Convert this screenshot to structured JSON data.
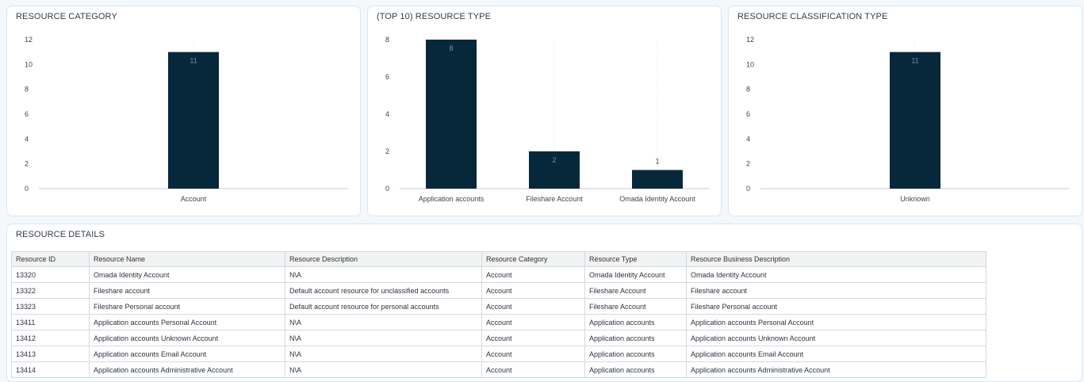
{
  "charts": {
    "category": {
      "title": "RESOURCE CATEGORY",
      "yticks": [
        "12",
        "10",
        "8",
        "6",
        "4",
        "2",
        "0"
      ],
      "chart_data": {
        "type": "bar",
        "categories": [
          "Account"
        ],
        "values": [
          11
        ],
        "ylim": [
          0,
          12
        ],
        "data_labels": [
          "11"
        ]
      }
    },
    "type": {
      "title": "(TOP 10) RESOURCE TYPE",
      "yticks": [
        "8",
        "6",
        "4",
        "2",
        "0"
      ],
      "chart_data": {
        "type": "bar",
        "categories": [
          "Application accounts",
          "Fileshare Account",
          "Omada Identity Account"
        ],
        "values": [
          8,
          2,
          1
        ],
        "ylim": [
          0,
          8
        ],
        "data_labels": [
          "8",
          "2",
          "1"
        ]
      }
    },
    "classification": {
      "title": "RESOURCE CLASSIFICATION TYPE",
      "yticks": [
        "12",
        "10",
        "8",
        "6",
        "4",
        "2",
        "0"
      ],
      "chart_data": {
        "type": "bar",
        "categories": [
          "Unknown"
        ],
        "values": [
          11
        ],
        "ylim": [
          0,
          12
        ],
        "data_labels": [
          "11"
        ]
      }
    }
  },
  "chart_data": [
    {
      "type": "bar",
      "title": "RESOURCE CATEGORY",
      "categories": [
        "Account"
      ],
      "values": [
        11
      ],
      "ylim": [
        0,
        12
      ]
    },
    {
      "type": "bar",
      "title": "(TOP 10) RESOURCE TYPE",
      "categories": [
        "Application accounts",
        "Fileshare Account",
        "Omada Identity Account"
      ],
      "values": [
        8,
        2,
        1
      ],
      "ylim": [
        0,
        8
      ]
    },
    {
      "type": "bar",
      "title": "RESOURCE CLASSIFICATION TYPE",
      "categories": [
        "Unknown"
      ],
      "values": [
        11
      ],
      "ylim": [
        0,
        12
      ]
    }
  ],
  "details": {
    "title": "RESOURCE DETAILS",
    "columns": [
      "Resource ID",
      "Resource Name",
      "Resource Description",
      "Resource Category",
      "Resource Type",
      "Resource Business Description"
    ],
    "rows": [
      [
        "13320",
        "Omada Identity Account",
        "N\\A",
        "Account",
        "Omada Identity Account",
        "Omada Identity Account"
      ],
      [
        "13322",
        "Fileshare account",
        "Default account resource for unclassified accounts",
        "Account",
        "Fileshare Account",
        "Fileshare account"
      ],
      [
        "13323",
        "Fileshare Personal account",
        "Default account resource for personal accounts",
        "Account",
        "Fileshare Account",
        "Fileshare Personal account"
      ],
      [
        "13411",
        "Application accounts Personal Account",
        "N\\A",
        "Account",
        "Application accounts",
        "Application accounts Personal Account"
      ],
      [
        "13412",
        "Application accounts Unknown Account",
        "N\\A",
        "Account",
        "Application accounts",
        "Application accounts Unknown Account"
      ],
      [
        "13413",
        "Application accounts Email Account",
        "N\\A",
        "Account",
        "Application accounts",
        "Application accounts Email Account"
      ],
      [
        "13414",
        "Application accounts Administrative Account",
        "N\\A",
        "Account",
        "Application accounts",
        "Application accounts Administrative Account"
      ]
    ]
  },
  "colors": {
    "bar": "#06283a",
    "border": "#d9e6f0",
    "background": "#f4f8fb"
  }
}
